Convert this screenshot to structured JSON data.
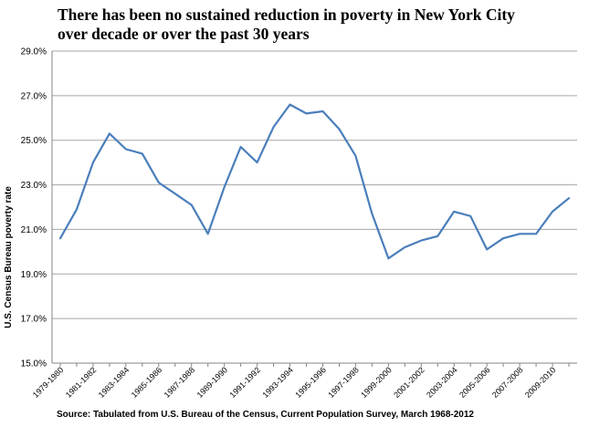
{
  "title": {
    "line1": "There has been no sustained reduction in poverty  in New York City",
    "line2": "over decade or over the past 30 years"
  },
  "source": "Source: Tabulated from U.S. Bureau of the Census, Current Population Survey, March 1968-2012",
  "colors": {
    "line": "#4a7ebb",
    "grid": "#a6a6a6",
    "axis": "#868686"
  },
  "chart_data": {
    "type": "line",
    "ylabel": "U.S. Census Bureau poverty rate",
    "ylim": [
      15.0,
      29.0
    ],
    "yticks": [
      "15.0%",
      "17.0%",
      "19.0%",
      "21.0%",
      "23.0%",
      "25.0%",
      "27.0%",
      "29.0%"
    ],
    "grid": true,
    "x": [
      "1979-1980",
      "1980-1981",
      "1981-1982",
      "1982-1983",
      "1983-1984",
      "1984-1985",
      "1985-1986",
      "1986-1987",
      "1987-1988",
      "1988-1989",
      "1989-1990",
      "1990-1991",
      "1991-1992",
      "1992-1993",
      "1993-1994",
      "1994-1995",
      "1995-1996",
      "1996-1997",
      "1997-1998",
      "1998-1999",
      "1999-2000",
      "2000-2001",
      "2001-2002",
      "2002-2003",
      "2003-2004",
      "2004-2005",
      "2005-2006",
      "2006-2007",
      "2007-2008",
      "2008-2009",
      "2009-2010",
      "2010-2011"
    ],
    "xticklabels": [
      "1979-1980",
      "1981-1982",
      "1983-1984",
      "1985-1986",
      "1987-1988",
      "1989-1990",
      "1991-1992",
      "1993-1994",
      "1995-1996",
      "1997-1998",
      "1999-2000",
      "2001-2002",
      "2003-2004",
      "2005-2006",
      "2007-2008",
      "2009-2010"
    ],
    "series": [
      {
        "values": [
          20.6,
          21.9,
          24.0,
          25.3,
          24.6,
          24.4,
          23.1,
          22.6,
          22.1,
          20.8,
          22.9,
          24.7,
          24.0,
          25.6,
          26.6,
          26.2,
          26.3,
          25.5,
          24.3,
          21.7,
          19.7,
          20.2,
          20.5,
          20.7,
          21.8,
          21.6,
          20.1,
          20.6,
          20.8,
          20.8,
          21.8,
          22.4
        ]
      }
    ]
  }
}
